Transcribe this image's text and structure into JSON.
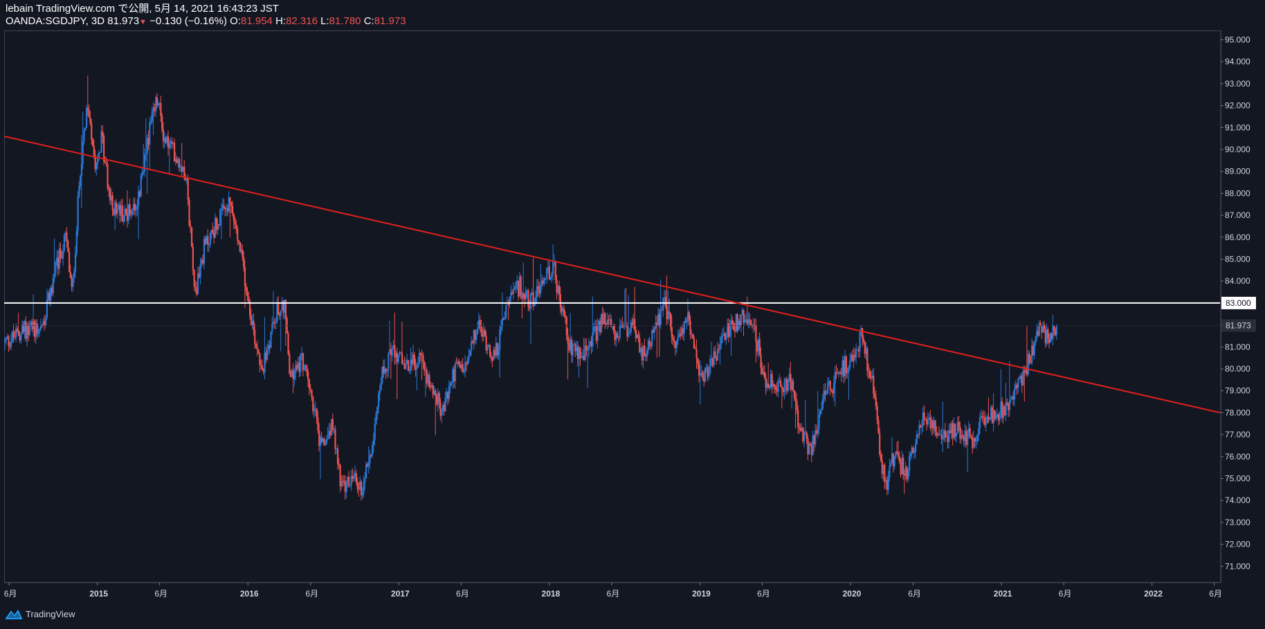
{
  "header": {
    "publish_line": "lebain TradingView.com で公開, 5月 14, 2021 16:43:23 JST",
    "symbol": "OANDA:SGDJPY, 3D",
    "last": "81.973",
    "change_arrow": "▼",
    "change": "−0.130 (−0.16%)",
    "o_label": "O:",
    "o_value": "81.954",
    "h_label": "H:",
    "h_value": "82.316",
    "l_label": "L:",
    "l_value": "81.780",
    "c_label": "C:",
    "c_value": "81.973"
  },
  "footer": {
    "brand": "TradingView"
  },
  "colors": {
    "background": "#131722",
    "up": "#2a78d6",
    "down": "#ef5350",
    "trendline": "#e0201b",
    "level_line": "#ffffff",
    "price_label_bg": "#2a2e39",
    "grid_border": "#434651"
  },
  "chart_data": {
    "type": "candlestick",
    "interval": "3D",
    "y_range": [
      70.5,
      95.5
    ],
    "y_ticks": [
      "95.000",
      "94.000",
      "93.000",
      "92.000",
      "91.000",
      "90.000",
      "89.000",
      "88.000",
      "87.000",
      "86.000",
      "85.000",
      "84.000",
      "83.000",
      "82.000",
      "81.000",
      "80.000",
      "79.000",
      "78.000",
      "77.000",
      "76.000",
      "75.000",
      "74.000",
      "73.000",
      "72.000",
      "71.000"
    ],
    "y_axis_side": "right",
    "x_range": [
      "2014-05-20",
      "2022-06-15"
    ],
    "x_ticks": [
      {
        "date": "2014-06-01",
        "label": "6月",
        "year": false
      },
      {
        "date": "2015-01-01",
        "label": "2015",
        "year": true
      },
      {
        "date": "2015-06-01",
        "label": "6月",
        "year": false
      },
      {
        "date": "2016-01-01",
        "label": "2016",
        "year": true
      },
      {
        "date": "2016-06-01",
        "label": "6月",
        "year": false
      },
      {
        "date": "2017-01-01",
        "label": "2017",
        "year": true
      },
      {
        "date": "2017-06-01",
        "label": "6月",
        "year": false
      },
      {
        "date": "2018-01-01",
        "label": "2018",
        "year": true
      },
      {
        "date": "2018-06-01",
        "label": "6月",
        "year": false
      },
      {
        "date": "2019-01-01",
        "label": "2019",
        "year": true
      },
      {
        "date": "2019-06-01",
        "label": "6月",
        "year": false
      },
      {
        "date": "2020-01-01",
        "label": "2020",
        "year": true
      },
      {
        "date": "2020-06-01",
        "label": "6月",
        "year": false
      },
      {
        "date": "2021-01-01",
        "label": "2021",
        "year": true
      },
      {
        "date": "2021-06-01",
        "label": "6月",
        "year": false
      },
      {
        "date": "2022-01-01",
        "label": "2022",
        "year": true
      },
      {
        "date": "2022-06-01",
        "label": "6月",
        "year": false
      }
    ],
    "price_path_anchors": [
      [
        "2014-05-20",
        81.2
      ],
      [
        "2014-07-10",
        81.8
      ],
      [
        "2014-08-20",
        82.0
      ],
      [
        "2014-09-20",
        84.5
      ],
      [
        "2014-10-15",
        86.0
      ],
      [
        "2014-10-30",
        83.3
      ],
      [
        "2014-11-20",
        89.5
      ],
      [
        "2014-12-08",
        92.0
      ],
      [
        "2014-12-25",
        89.5
      ],
      [
        "2015-01-10",
        90.5
      ],
      [
        "2015-02-01",
        87.5
      ],
      [
        "2015-03-10",
        87.0
      ],
      [
        "2015-04-10",
        87.8
      ],
      [
        "2015-05-01",
        90.5
      ],
      [
        "2015-05-25",
        92.3
      ],
      [
        "2015-06-10",
        90.5
      ],
      [
        "2015-07-01",
        90.0
      ],
      [
        "2015-08-01",
        89.0
      ],
      [
        "2015-08-25",
        83.5
      ],
      [
        "2015-09-15",
        85.5
      ],
      [
        "2015-10-20",
        86.8
      ],
      [
        "2015-11-18",
        87.5
      ],
      [
        "2015-12-20",
        84.5
      ],
      [
        "2016-01-15",
        81.5
      ],
      [
        "2016-02-05",
        80.0
      ],
      [
        "2016-03-05",
        82.5
      ],
      [
        "2016-03-28",
        83.0
      ],
      [
        "2016-04-10",
        79.5
      ],
      [
        "2016-05-10",
        80.5
      ],
      [
        "2016-06-10",
        78.0
      ],
      [
        "2016-06-25",
        76.2
      ],
      [
        "2016-07-20",
        77.5
      ],
      [
        "2016-08-15",
        74.5
      ],
      [
        "2016-09-10",
        75.0
      ],
      [
        "2016-10-01",
        74.5
      ],
      [
        "2016-10-25",
        76.5
      ],
      [
        "2016-11-15",
        79.5
      ],
      [
        "2016-12-15",
        81.0
      ],
      [
        "2017-01-20",
        80.0
      ],
      [
        "2017-02-20",
        80.5
      ],
      [
        "2017-04-15",
        78.0
      ],
      [
        "2017-05-15",
        80.0
      ],
      [
        "2017-06-10",
        80.0
      ],
      [
        "2017-07-10",
        82.0
      ],
      [
        "2017-08-20",
        80.5
      ],
      [
        "2017-09-20",
        83.0
      ],
      [
        "2017-10-20",
        83.8
      ],
      [
        "2017-11-15",
        83.0
      ],
      [
        "2017-12-15",
        84.0
      ],
      [
        "2018-01-08",
        84.8
      ],
      [
        "2018-01-30",
        82.5
      ],
      [
        "2018-02-20",
        81.0
      ],
      [
        "2018-03-20",
        80.5
      ],
      [
        "2018-05-10",
        82.3
      ],
      [
        "2018-06-15",
        81.5
      ],
      [
        "2018-07-20",
        82.0
      ],
      [
        "2018-08-10",
        80.5
      ],
      [
        "2018-09-10",
        81.5
      ],
      [
        "2018-10-05",
        83.0
      ],
      [
        "2018-11-01",
        81.0
      ],
      [
        "2018-12-01",
        82.5
      ],
      [
        "2019-01-03",
        79.5
      ],
      [
        "2019-02-01",
        80.5
      ],
      [
        "2019-03-10",
        81.8
      ],
      [
        "2019-04-20",
        82.5
      ],
      [
        "2019-05-15",
        81.5
      ],
      [
        "2019-06-05",
        79.5
      ],
      [
        "2019-07-10",
        79.2
      ],
      [
        "2019-08-10",
        79.5
      ],
      [
        "2019-09-01",
        77.0
      ],
      [
        "2019-09-25",
        76.3
      ],
      [
        "2019-10-25",
        78.5
      ],
      [
        "2019-12-01",
        79.8
      ],
      [
        "2020-01-05",
        80.5
      ],
      [
        "2020-01-25",
        81.5
      ],
      [
        "2020-02-25",
        79.0
      ],
      [
        "2020-03-12",
        76.0
      ],
      [
        "2020-03-25",
        74.5
      ],
      [
        "2020-04-10",
        76.0
      ],
      [
        "2020-05-15",
        75.3
      ],
      [
        "2020-06-05",
        76.5
      ],
      [
        "2020-06-25",
        78.0
      ],
      [
        "2020-08-10",
        77.0
      ],
      [
        "2020-09-20",
        77.2
      ],
      [
        "2020-10-20",
        76.8
      ],
      [
        "2020-11-20",
        77.8
      ],
      [
        "2020-12-20",
        78.0
      ],
      [
        "2021-01-15",
        78.2
      ],
      [
        "2021-02-15",
        79.5
      ],
      [
        "2021-03-10",
        80.5
      ],
      [
        "2021-04-01",
        82.0
      ],
      [
        "2021-04-25",
        81.2
      ],
      [
        "2021-05-14",
        81.97
      ]
    ],
    "last_close": 81.973,
    "last_price_label": "81.973",
    "horizontal_level": {
      "price": 83.0,
      "label": "83.000"
    },
    "trendline": {
      "start": [
        "2014-05-20",
        90.6
      ],
      "end": [
        "2022-06-15",
        78.0
      ]
    }
  }
}
